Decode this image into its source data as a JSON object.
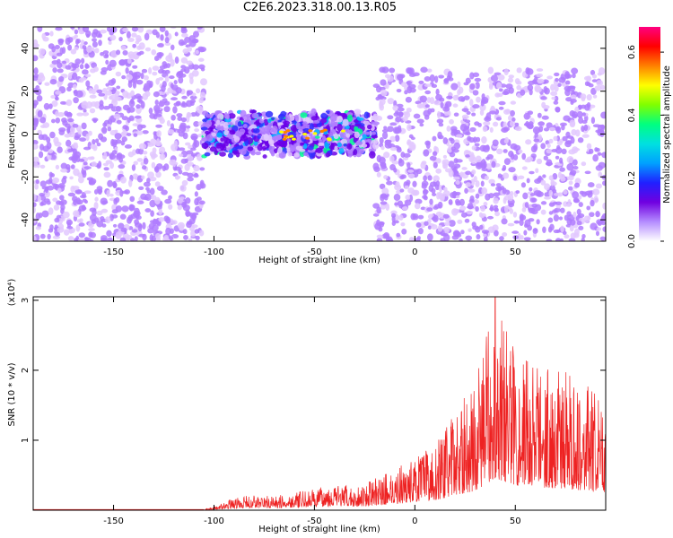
{
  "title": "C2E6.2023.318.00.13.R05",
  "chart_data": [
    {
      "type": "heatmap",
      "xlabel": "Height of straight line (km)",
      "ylabel": "Frequency (Hz)",
      "xlim": [
        -190,
        95
      ],
      "ylim": [
        -50,
        50
      ],
      "xticks": [
        -150,
        -100,
        -50,
        0,
        50
      ],
      "yticks": [
        -40,
        -20,
        0,
        20,
        40
      ],
      "colorbar": {
        "label": "Normalized spectral amplitude",
        "range": [
          0.0,
          0.68
        ],
        "ticks": [
          0.0,
          0.2,
          0.4,
          0.6
        ],
        "colors": [
          "#ffffff",
          "#b48cff",
          "#7000e0",
          "#2020ff",
          "#00a0ff",
          "#00e0e0",
          "#00ff80",
          "#80ff00",
          "#ffff00",
          "#ff8000",
          "#ff0000",
          "#ff0080"
        ]
      },
      "regions": [
        {
          "x": [
            -190,
            -105
          ],
          "f": [
            -50,
            50
          ],
          "level": 0.12
        },
        {
          "x": [
            -105,
            -20
          ],
          "f": [
            -8,
            8
          ],
          "level": 0.3
        },
        {
          "x": [
            -20,
            95
          ],
          "f": [
            -50,
            30
          ],
          "level": 0.18
        }
      ]
    },
    {
      "type": "line",
      "xlabel": "Height of straight line (km)",
      "ylabel": "SNR (10 * v/v)",
      "scale_note": "(x10⁴)",
      "xlim": [
        -190,
        95
      ],
      "ylim": [
        0,
        3.05
      ],
      "xticks": [
        -150,
        -100,
        -50,
        0,
        50
      ],
      "yticks": [
        1,
        2,
        3
      ],
      "color": "#ee2222",
      "envelope": {
        "x": [
          -190,
          -105,
          -100,
          -90,
          -80,
          -70,
          -60,
          -50,
          -40,
          -30,
          -20,
          -10,
          0,
          10,
          20,
          30,
          40,
          50,
          60,
          70,
          80,
          90,
          95
        ],
        "y": [
          0.01,
          0.01,
          0.05,
          0.18,
          0.22,
          0.2,
          0.25,
          0.3,
          0.38,
          0.33,
          0.45,
          0.6,
          0.75,
          0.95,
          1.4,
          1.85,
          3.05,
          2.35,
          2.2,
          2.05,
          1.95,
          1.7,
          1.35
        ]
      }
    }
  ]
}
